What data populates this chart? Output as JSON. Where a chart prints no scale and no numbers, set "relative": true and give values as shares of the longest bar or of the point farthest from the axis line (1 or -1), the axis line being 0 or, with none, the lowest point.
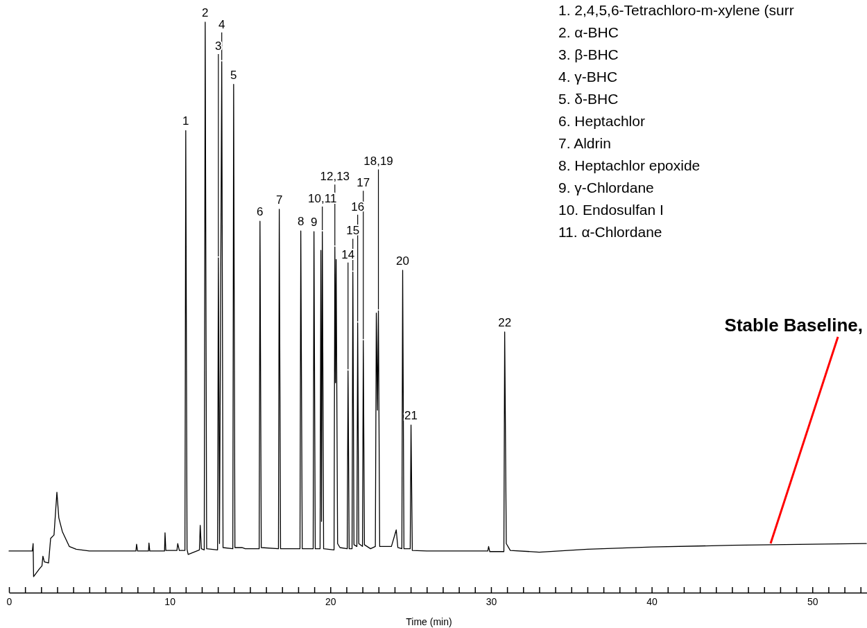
{
  "chart_data": {
    "type": "line",
    "relative": true,
    "xlabel": "Time (min)",
    "xlim": [
      0,
      53.4
    ],
    "xticks": [
      0,
      {
        "value": 1,
        "label": null
      },
      {
        "value": 2,
        "label": null
      },
      {
        "value": 3,
        "label": null
      },
      {
        "value": 4,
        "label": null
      },
      {
        "value": 5,
        "label": null
      },
      {
        "value": 6,
        "label": null
      },
      {
        "value": 7,
        "label": null
      },
      {
        "value": 8,
        "label": null
      },
      {
        "value": 9,
        "label": null
      },
      10,
      {
        "value": 11,
        "label": null
      },
      {
        "value": 12,
        "label": null
      },
      {
        "value": 13,
        "label": null
      },
      {
        "value": 14,
        "label": null
      },
      {
        "value": 15,
        "label": null
      },
      {
        "value": 16,
        "label": null
      },
      {
        "value": 17,
        "label": null
      },
      {
        "value": 18,
        "label": null
      },
      {
        "value": 19,
        "label": null
      },
      20,
      {
        "value": 21,
        "label": null
      },
      {
        "value": 22,
        "label": null
      },
      {
        "value": 23,
        "label": null
      },
      {
        "value": 24,
        "label": null
      },
      {
        "value": 25,
        "label": null
      },
      {
        "value": 26,
        "label": null
      },
      {
        "value": 27,
        "label": null
      },
      {
        "value": 28,
        "label": null
      },
      {
        "value": 29,
        "label": null
      },
      30,
      {
        "value": 31,
        "label": null
      },
      {
        "value": 32,
        "label": null
      },
      {
        "value": 33,
        "label": null
      },
      {
        "value": 34,
        "label": null
      },
      {
        "value": 35,
        "label": null
      },
      {
        "value": 36,
        "label": null
      },
      {
        "value": 37,
        "label": null
      },
      {
        "value": 38,
        "label": null
      },
      {
        "value": 39,
        "label": null
      },
      40,
      {
        "value": 41,
        "label": null
      },
      {
        "value": 42,
        "label": null
      },
      {
        "value": 43,
        "label": null
      },
      {
        "value": 44,
        "label": null
      },
      {
        "value": 45,
        "label": null
      },
      {
        "value": 46,
        "label": null
      },
      {
        "value": 47,
        "label": null
      },
      {
        "value": 48,
        "label": null
      },
      {
        "value": 49,
        "label": null
      },
      50,
      {
        "value": 51,
        "label": null
      },
      {
        "value": 52,
        "label": null
      },
      {
        "value": 53,
        "label": null
      }
    ],
    "grid": false,
    "marker": "none",
    "line_style": "solid",
    "series": [
      {
        "color": "#000000",
        "x": [
          0,
          1.45,
          1.5,
          1.53,
          1.9,
          2.05,
          2.11,
          2.2,
          2.46,
          2.59,
          2.8,
          2.98,
          3.1,
          3.32,
          3.75,
          4.18,
          5,
          7.9,
          7.94,
          8.0,
          8.68,
          8.71,
          8.76,
          9.68,
          9.71,
          9.76,
          10.45,
          10.5,
          10.6,
          10.95,
          11.0,
          11.08,
          11.15,
          11.85,
          11.9,
          11.97,
          12.15,
          12.21,
          12.3,
          12.98,
          13.03,
          13.1,
          13.24,
          13.32,
          13.93,
          13.98,
          14.06,
          14.5,
          14.7,
          15.57,
          15.62,
          15.7,
          16.77,
          16.82,
          16.9,
          18.11,
          18.16,
          18.25,
          18.93,
          18.98,
          19.06,
          19.36,
          19.41,
          19.45,
          19.5,
          19.58,
          20.23,
          20.28,
          20.32,
          20.36,
          20.45,
          20.6,
          21.05,
          21.1,
          21.17,
          21.35,
          21.4,
          21.47,
          21.65,
          21.7,
          21.77,
          22.0,
          22.05,
          22.12,
          22.5,
          22.8,
          22.86,
          22.93,
          22.99,
          23.07,
          23.8,
          24.1,
          24.2,
          24.45,
          24.5,
          24.58,
          24.97,
          25.02,
          25.1,
          26,
          29.8,
          29.85,
          29.92,
          30.8,
          30.85,
          30.95,
          31.2,
          33,
          36,
          40,
          45,
          50,
          53.36
        ],
        "values": [
          0.073,
          0.073,
          0.086,
          0.028,
          0.042,
          0.047,
          0.064,
          0.054,
          0.052,
          0.095,
          0.101,
          0.176,
          0.131,
          0.107,
          0.081,
          0.076,
          0.073,
          0.073,
          0.085,
          0.073,
          0.073,
          0.087,
          0.073,
          0.073,
          0.105,
          0.074,
          0.074,
          0.086,
          0.074,
          0.074,
          0.81,
          0.076,
          0.067,
          0.075,
          0.118,
          0.077,
          0.075,
          1.0,
          0.077,
          0.075,
          0.587,
          0.086,
          0.931,
          0.079,
          0.077,
          0.891,
          0.079,
          0.079,
          0.077,
          0.077,
          0.651,
          0.079,
          0.077,
          0.672,
          0.077,
          0.077,
          0.634,
          0.077,
          0.077,
          0.633,
          0.077,
          0.077,
          0.6,
          0.125,
          0.633,
          0.077,
          0.075,
          0.606,
          0.368,
          0.584,
          0.086,
          0.079,
          0.077,
          0.389,
          0.077,
          0.077,
          0.562,
          0.084,
          0.081,
          0.473,
          0.086,
          0.081,
          0.442,
          0.084,
          0.077,
          0.081,
          0.49,
          0.32,
          0.494,
          0.081,
          0.081,
          0.11,
          0.079,
          0.077,
          0.565,
          0.077,
          0.077,
          0.294,
          0.074,
          0.073,
          0.073,
          0.081,
          0.072,
          0.072,
          0.457,
          0.086,
          0.074,
          0.071,
          0.076,
          0.08,
          0.083,
          0.085,
          0.086
        ]
      }
    ],
    "annotations": [
      {
        "text": "1",
        "x": 11.0,
        "y": 0.81
      },
      {
        "text": "2",
        "x": 12.21,
        "y": 1.0
      },
      {
        "text": "3",
        "x": 13.03,
        "y": 0.587
      },
      {
        "text": "4",
        "x": 13.24,
        "y": 0.931
      },
      {
        "text": "5",
        "x": 13.98,
        "y": 0.891
      },
      {
        "text": "6",
        "x": 15.62,
        "y": 0.651
      },
      {
        "text": "7",
        "x": 16.82,
        "y": 0.672
      },
      {
        "text": "8",
        "x": 18.16,
        "y": 0.634
      },
      {
        "text": "9",
        "x": 18.98,
        "y": 0.633
      },
      {
        "text": "10,11",
        "x": 19.5,
        "y": 0.633
      },
      {
        "text": "12,13",
        "x": 20.28,
        "y": 0.606
      },
      {
        "text": "14",
        "x": 21.1,
        "y": 0.389
      },
      {
        "text": "15",
        "x": 21.4,
        "y": 0.562
      },
      {
        "text": "16",
        "x": 21.7,
        "y": 0.473
      },
      {
        "text": "17",
        "x": 22.05,
        "y": 0.442
      },
      {
        "text": "18,19",
        "x": 22.99,
        "y": 0.494
      },
      {
        "text": "20",
        "x": 24.5,
        "y": 0.565
      },
      {
        "text": "21",
        "x": 25.02,
        "y": 0.294
      },
      {
        "text": "22",
        "x": 30.85,
        "y": 0.457
      },
      {
        "text": "Stable Baseline,",
        "x": 47.4,
        "y": 0.085
      },
      "1. 2,4,5,6-Tetrachloro-m-xylene (surr",
      "2. α-BHC",
      "3. β-BHC",
      "4. γ-BHC",
      "5. δ-BHC",
      "6. Heptachlor",
      "7. Aldrin",
      "8. Heptachlor epoxide",
      "9. γ-Chlordane",
      "10. Endosulfan I",
      "11. α-Chlordane"
    ]
  }
}
